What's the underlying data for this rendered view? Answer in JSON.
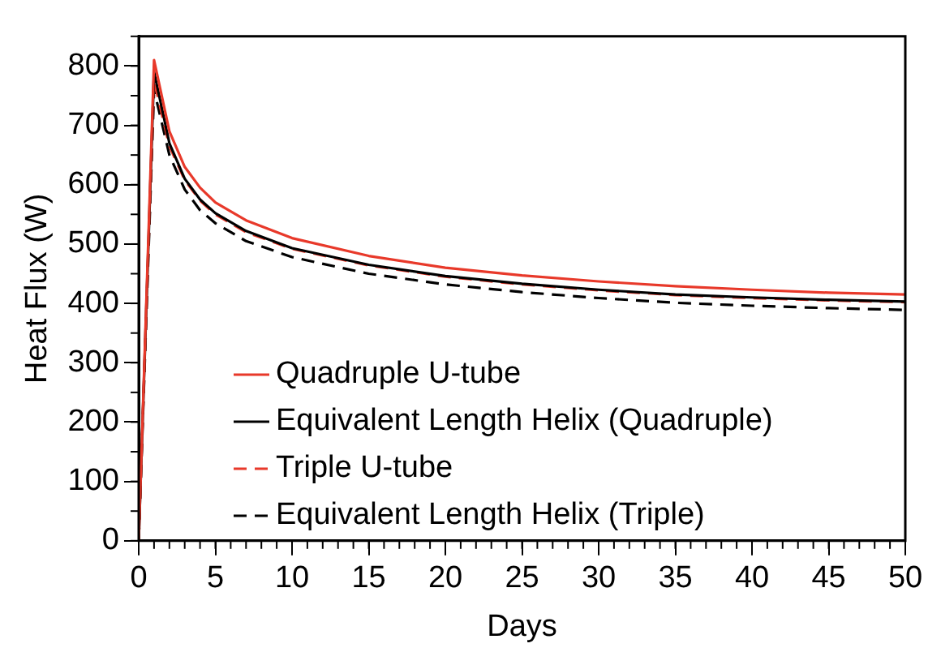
{
  "chart_data": {
    "type": "line",
    "xlabel": "Days",
    "ylabel": "Heat Flux (W)",
    "x": [
      0,
      1,
      2,
      3,
      4,
      5,
      7,
      10,
      15,
      20,
      25,
      30,
      35,
      40,
      45,
      50
    ],
    "series": [
      {
        "name": "Quadruple U-tube",
        "color": "#e8392a",
        "line_style": "solid",
        "values": [
          0,
          810,
          690,
          630,
          595,
          570,
          540,
          510,
          480,
          460,
          447,
          437,
          429,
          423,
          418,
          415
        ]
      },
      {
        "name": "Equivalent Length Helix (Quadruple)",
        "color": "#000000",
        "line_style": "solid",
        "values": [
          0,
          790,
          670,
          610,
          575,
          552,
          522,
          493,
          465,
          446,
          433,
          423,
          415,
          410,
          406,
          403
        ]
      },
      {
        "name": "Triple U-tube",
        "color": "#e8392a",
        "line_style": "dashed",
        "values": [
          0,
          775,
          665,
          608,
          573,
          550,
          520,
          492,
          464,
          445,
          432,
          422,
          414,
          409,
          405,
          402
        ]
      },
      {
        "name": "Equivalent Length Helix (Triple)",
        "color": "#000000",
        "line_style": "dashed",
        "values": [
          0,
          760,
          650,
          592,
          557,
          535,
          505,
          478,
          450,
          432,
          419,
          409,
          401,
          396,
          392,
          389
        ]
      }
    ],
    "xlim": [
      0,
      50
    ],
    "xticks": [
      0,
      5,
      10,
      15,
      20,
      25,
      30,
      35,
      40,
      45,
      50
    ],
    "ylim": [
      0,
      850
    ],
    "yticks": [
      0,
      100,
      200,
      300,
      400,
      500,
      600,
      700,
      800
    ],
    "grid": false,
    "legend": "bottom left",
    "marker": "none"
  }
}
